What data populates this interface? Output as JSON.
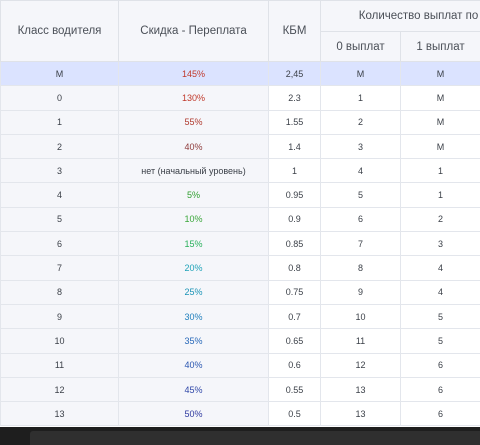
{
  "headers": {
    "driver_class": "Класс водителя",
    "discount": "Скидка - Переплата",
    "kbm": "КБМ",
    "payouts": "Количество выплат по",
    "zero": "0 выплат",
    "one": "1 выплат"
  },
  "rows": [
    {
      "cls": "М",
      "disc": "145%",
      "color": "#c0392b",
      "kbm": "2,45",
      "p0": "М",
      "p1": "М",
      "highlight": true
    },
    {
      "cls": "0",
      "disc": "130%",
      "color": "#c0392b",
      "kbm": "2.3",
      "p0": "1",
      "p1": "М"
    },
    {
      "cls": "1",
      "disc": "55%",
      "color": "#b03a2e",
      "kbm": "1.55",
      "p0": "2",
      "p1": "М"
    },
    {
      "cls": "2",
      "disc": "40%",
      "color": "#8e3b3b",
      "kbm": "1.4",
      "p0": "3",
      "p1": "М"
    },
    {
      "cls": "3",
      "disc": "нет (начальный уровень)",
      "color": "#3a3f47",
      "kbm": "1",
      "p0": "4",
      "p1": "1"
    },
    {
      "cls": "4",
      "disc": "5%",
      "color": "#2e9e2e",
      "kbm": "0.95",
      "p0": "5",
      "p1": "1"
    },
    {
      "cls": "5",
      "disc": "10%",
      "color": "#3aa63a",
      "kbm": "0.9",
      "p0": "6",
      "p1": "2"
    },
    {
      "cls": "6",
      "disc": "15%",
      "color": "#27b05a",
      "kbm": "0.85",
      "p0": "7",
      "p1": "3"
    },
    {
      "cls": "7",
      "disc": "20%",
      "color": "#1fa3b8",
      "kbm": "0.8",
      "p0": "8",
      "p1": "4"
    },
    {
      "cls": "8",
      "disc": "25%",
      "color": "#1a93b6",
      "kbm": "0.75",
      "p0": "9",
      "p1": "4"
    },
    {
      "cls": "9",
      "disc": "30%",
      "color": "#1f7fbd",
      "kbm": "0.7",
      "p0": "10",
      "p1": "5"
    },
    {
      "cls": "10",
      "disc": "35%",
      "color": "#2667b8",
      "kbm": "0.65",
      "p0": "11",
      "p1": "5"
    },
    {
      "cls": "11",
      "disc": "40%",
      "color": "#2a56b0",
      "kbm": "0.6",
      "p0": "12",
      "p1": "6"
    },
    {
      "cls": "12",
      "disc": "45%",
      "color": "#2f47a8",
      "kbm": "0.55",
      "p0": "13",
      "p1": "6"
    },
    {
      "cls": "13",
      "disc": "50%",
      "color": "#2f3aa0",
      "kbm": "0.5",
      "p0": "13",
      "p1": "6"
    }
  ]
}
